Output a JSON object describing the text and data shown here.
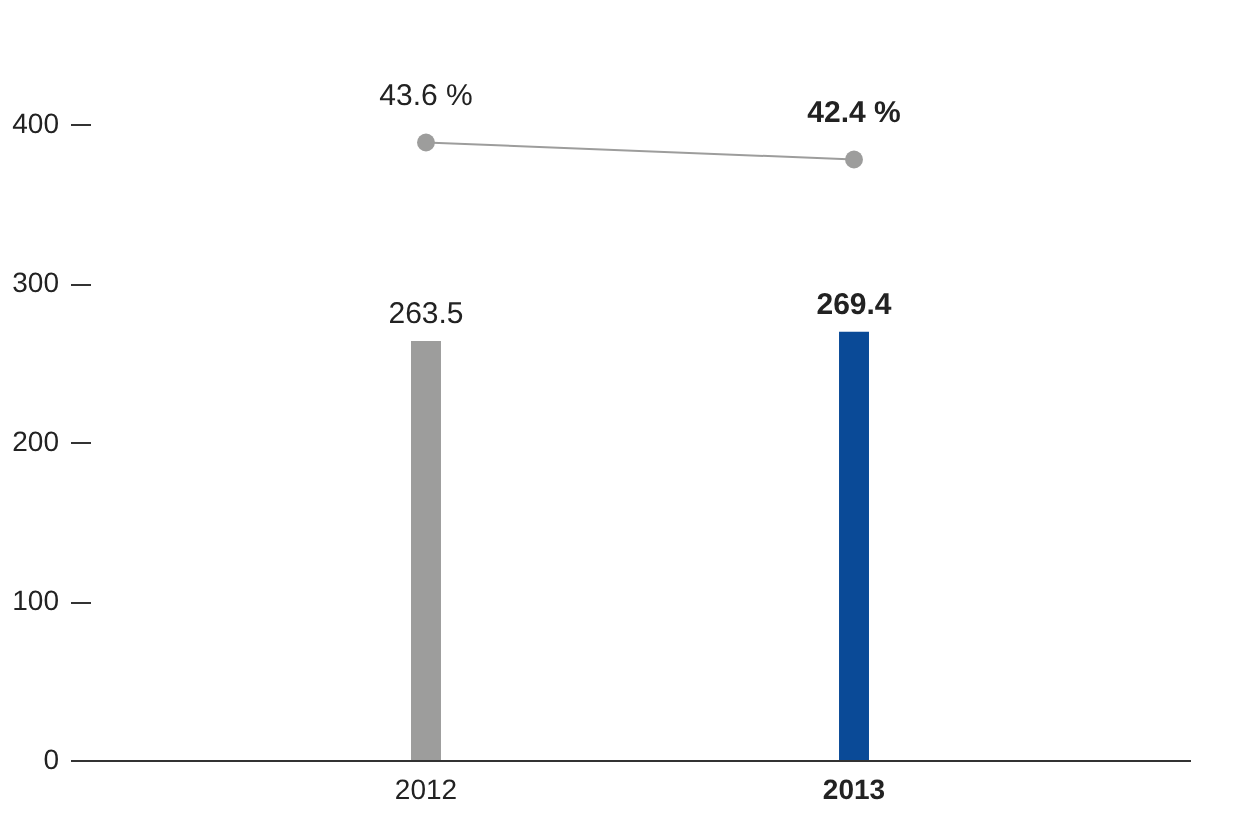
{
  "chart_data": {
    "type": "bar",
    "categories": [
      "2012",
      "2013"
    ],
    "series": [
      {
        "colors": [
          "#9d9d9c",
          "#0a4a97"
        ],
        "values": [
          263.5,
          269.4
        ],
        "value_labels": [
          "263.5",
          "269.4"
        ]
      },
      {
        "type": "line",
        "axis": "y2",
        "color": "#9d9d9c",
        "values": [
          43.6,
          42.4
        ],
        "value_labels": [
          "43.6 %",
          "42.4 %"
        ],
        "marker": "circle"
      }
    ],
    "ylim": [
      0,
      400
    ],
    "yticks": [
      0,
      100,
      200,
      300,
      400
    ],
    "grid": false
  }
}
